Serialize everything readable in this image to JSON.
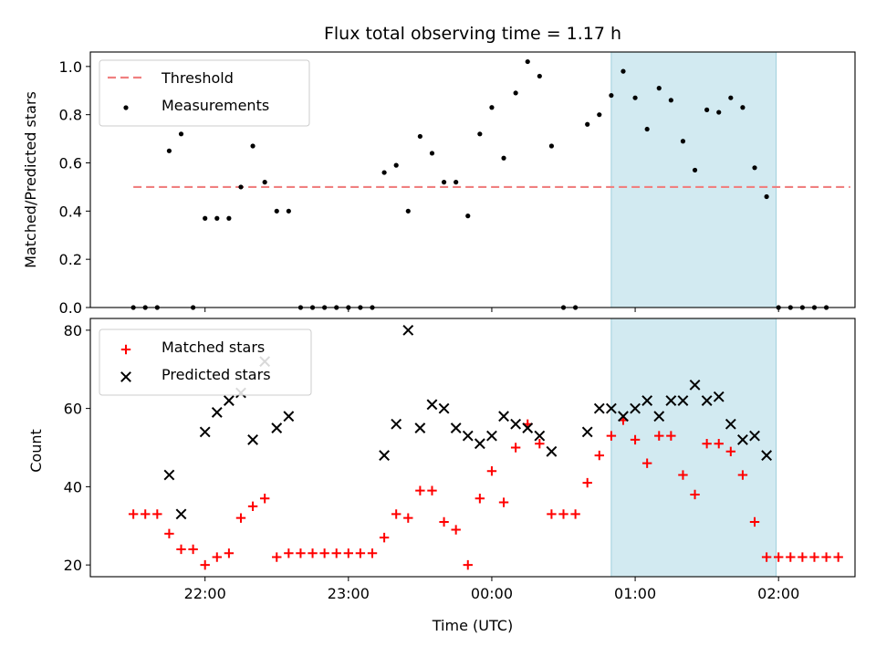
{
  "chart_data": [
    {
      "type": "scatter",
      "title": "Flux total observing time = 1.17 h",
      "xlabel": "",
      "ylabel": "Matched/Predicted stars",
      "ylim": [
        0,
        1.06
      ],
      "yticks": [
        "0.0",
        "0.2",
        "0.4",
        "0.6",
        "0.8",
        "1.0"
      ],
      "ytick_values": [
        0,
        0.2,
        0.4,
        0.6,
        0.8,
        1.0
      ],
      "legend_position": "top-left",
      "threshold": {
        "name": "Threshold",
        "value": 0.5,
        "x_start": "21:30",
        "x_end": "02:30",
        "color": "#f08080"
      },
      "highlight_span": {
        "x_start": "00:50",
        "x_end": "01:59",
        "color": "#add8e6"
      },
      "series": [
        {
          "name": "Measurements",
          "marker": "dot",
          "color": "#000000",
          "points": [
            [
              "21:30",
              0.0
            ],
            [
              "21:35",
              0.0
            ],
            [
              "21:40",
              0.0
            ],
            [
              "21:45",
              0.65
            ],
            [
              "21:50",
              0.72
            ],
            [
              "21:55",
              0.0
            ],
            [
              "22:00",
              0.37
            ],
            [
              "22:05",
              0.37
            ],
            [
              "22:10",
              0.37
            ],
            [
              "22:15",
              0.5
            ],
            [
              "22:20",
              0.67
            ],
            [
              "22:25",
              0.52
            ],
            [
              "22:30",
              0.4
            ],
            [
              "22:35",
              0.4
            ],
            [
              "22:40",
              0.0
            ],
            [
              "22:45",
              0.0
            ],
            [
              "22:50",
              0.0
            ],
            [
              "22:55",
              0.0
            ],
            [
              "23:00",
              0.0
            ],
            [
              "23:05",
              0.0
            ],
            [
              "23:10",
              0.0
            ],
            [
              "23:15",
              0.56
            ],
            [
              "23:20",
              0.59
            ],
            [
              "23:25",
              0.4
            ],
            [
              "23:30",
              0.71
            ],
            [
              "23:35",
              0.64
            ],
            [
              "23:40",
              0.52
            ],
            [
              "23:45",
              0.52
            ],
            [
              "23:50",
              0.38
            ],
            [
              "23:55",
              0.72
            ],
            [
              "00:00",
              0.83
            ],
            [
              "00:05",
              0.62
            ],
            [
              "00:10",
              0.89
            ],
            [
              "00:15",
              1.02
            ],
            [
              "00:20",
              0.96
            ],
            [
              "00:25",
              0.67
            ],
            [
              "00:30",
              0.0
            ],
            [
              "00:35",
              0.0
            ],
            [
              "00:40",
              0.76
            ],
            [
              "00:45",
              0.8
            ],
            [
              "00:50",
              0.88
            ],
            [
              "00:55",
              0.98
            ],
            [
              "01:00",
              0.87
            ],
            [
              "01:05",
              0.74
            ],
            [
              "01:10",
              0.91
            ],
            [
              "01:15",
              0.86
            ],
            [
              "01:20",
              0.69
            ],
            [
              "01:25",
              0.57
            ],
            [
              "01:30",
              0.82
            ],
            [
              "01:35",
              0.81
            ],
            [
              "01:40",
              0.87
            ],
            [
              "01:45",
              0.83
            ],
            [
              "01:50",
              0.58
            ],
            [
              "01:55",
              0.46
            ],
            [
              "02:00",
              0.0
            ],
            [
              "02:05",
              0.0
            ],
            [
              "02:10",
              0.0
            ],
            [
              "02:15",
              0.0
            ],
            [
              "02:20",
              0.0
            ]
          ]
        }
      ]
    },
    {
      "type": "scatter",
      "title": "",
      "xlabel": "Time (UTC)",
      "ylabel": "Count",
      "ylim": [
        17,
        83
      ],
      "yticks": [
        "20",
        "40",
        "60",
        "80"
      ],
      "ytick_values": [
        20,
        40,
        60,
        80
      ],
      "xticks": [
        "22:00",
        "23:00",
        "00:00",
        "01:00",
        "02:00"
      ],
      "legend_position": "top-left",
      "highlight_span": {
        "x_start": "00:50",
        "x_end": "01:59",
        "color": "#add8e6"
      },
      "series": [
        {
          "name": "Matched stars",
          "marker": "plus",
          "color": "#ff0000",
          "points": [
            [
              "21:30",
              33
            ],
            [
              "21:35",
              33
            ],
            [
              "21:40",
              33
            ],
            [
              "21:45",
              28
            ],
            [
              "21:50",
              24
            ],
            [
              "21:55",
              24
            ],
            [
              "22:00",
              20
            ],
            [
              "22:05",
              22
            ],
            [
              "22:10",
              23
            ],
            [
              "22:15",
              32
            ],
            [
              "22:20",
              35
            ],
            [
              "22:25",
              37
            ],
            [
              "22:30",
              22
            ],
            [
              "22:35",
              23
            ],
            [
              "22:40",
              23
            ],
            [
              "22:45",
              23
            ],
            [
              "22:50",
              23
            ],
            [
              "22:55",
              23
            ],
            [
              "23:00",
              23
            ],
            [
              "23:05",
              23
            ],
            [
              "23:10",
              23
            ],
            [
              "23:15",
              27
            ],
            [
              "23:20",
              33
            ],
            [
              "23:25",
              32
            ],
            [
              "23:30",
              39
            ],
            [
              "23:35",
              39
            ],
            [
              "23:40",
              31
            ],
            [
              "23:45",
              29
            ],
            [
              "23:50",
              20
            ],
            [
              "23:55",
              37
            ],
            [
              "00:00",
              44
            ],
            [
              "00:05",
              36
            ],
            [
              "00:10",
              50
            ],
            [
              "00:15",
              56
            ],
            [
              "00:20",
              51
            ],
            [
              "00:25",
              33
            ],
            [
              "00:30",
              33
            ],
            [
              "00:35",
              33
            ],
            [
              "00:40",
              41
            ],
            [
              "00:45",
              48
            ],
            [
              "00:50",
              53
            ],
            [
              "00:55",
              57
            ],
            [
              "01:00",
              52
            ],
            [
              "01:05",
              46
            ],
            [
              "01:10",
              53
            ],
            [
              "01:15",
              53
            ],
            [
              "01:20",
              43
            ],
            [
              "01:25",
              38
            ],
            [
              "01:30",
              51
            ],
            [
              "01:35",
              51
            ],
            [
              "01:40",
              49
            ],
            [
              "01:45",
              43
            ],
            [
              "01:50",
              31
            ],
            [
              "01:55",
              22
            ],
            [
              "02:00",
              22
            ],
            [
              "02:05",
              22
            ],
            [
              "02:10",
              22
            ],
            [
              "02:15",
              22
            ],
            [
              "02:20",
              22
            ],
            [
              "02:25",
              22
            ]
          ]
        },
        {
          "name": "Predicted stars",
          "marker": "x",
          "color": "#000000",
          "points": [
            [
              "21:45",
              43
            ],
            [
              "21:50",
              33
            ],
            [
              "22:00",
              54
            ],
            [
              "22:05",
              59
            ],
            [
              "22:10",
              62
            ],
            [
              "22:15",
              64
            ],
            [
              "22:20",
              52
            ],
            [
              "22:25",
              72
            ],
            [
              "22:30",
              55
            ],
            [
              "22:35",
              58
            ],
            [
              "23:15",
              48
            ],
            [
              "23:20",
              56
            ],
            [
              "23:25",
              80
            ],
            [
              "23:30",
              55
            ],
            [
              "23:35",
              61
            ],
            [
              "23:40",
              60
            ],
            [
              "23:45",
              55
            ],
            [
              "23:50",
              53
            ],
            [
              "23:55",
              51
            ],
            [
              "00:00",
              53
            ],
            [
              "00:05",
              58
            ],
            [
              "00:10",
              56
            ],
            [
              "00:15",
              55
            ],
            [
              "00:20",
              53
            ],
            [
              "00:25",
              49
            ],
            [
              "00:40",
              54
            ],
            [
              "00:45",
              60
            ],
            [
              "00:50",
              60
            ],
            [
              "00:55",
              58
            ],
            [
              "01:00",
              60
            ],
            [
              "01:05",
              62
            ],
            [
              "01:10",
              58
            ],
            [
              "01:15",
              62
            ],
            [
              "01:20",
              62
            ],
            [
              "01:25",
              66
            ],
            [
              "01:30",
              62
            ],
            [
              "01:35",
              63
            ],
            [
              "01:40",
              56
            ],
            [
              "01:45",
              52
            ],
            [
              "01:50",
              53
            ],
            [
              "01:55",
              48
            ]
          ]
        }
      ]
    }
  ]
}
